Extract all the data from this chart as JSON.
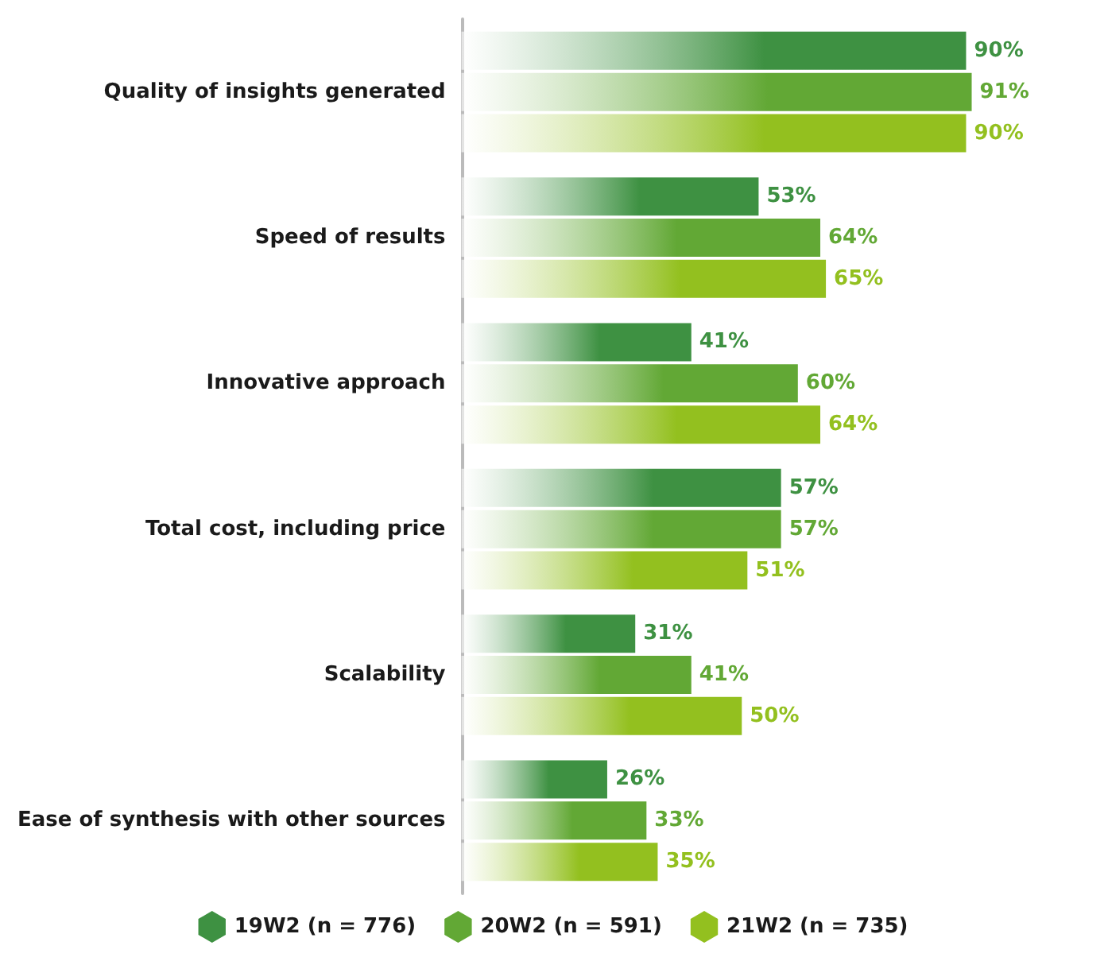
{
  "chart_data": {
    "type": "bar",
    "orientation": "horizontal",
    "categories": [
      "Quality of insights generated",
      "Speed of results",
      "Innovative approach",
      "Total cost, including price",
      "Scalability",
      "Ease of synthesis with other sources"
    ],
    "series": [
      {
        "name": "19W2 (n = 776)",
        "color": "#3e9142",
        "values": [
          90,
          53,
          41,
          57,
          31,
          26
        ],
        "value_labels": [
          "90%",
          "53%",
          "41%",
          "57%",
          "31%",
          "26%"
        ]
      },
      {
        "name": "20W2 (n = 591)",
        "color": "#62a835",
        "values": [
          91,
          64,
          60,
          57,
          41,
          33
        ],
        "value_labels": [
          "91%",
          "64%",
          "60%",
          "57%",
          "41%",
          "33%"
        ]
      },
      {
        "name": "21W2 (n = 735)",
        "color": "#93c01f",
        "values": [
          90,
          65,
          64,
          51,
          50,
          35
        ],
        "value_labels": [
          "90%",
          "65%",
          "64%",
          "51%",
          "50%",
          "35%"
        ]
      }
    ],
    "legend": "bottom"
  }
}
